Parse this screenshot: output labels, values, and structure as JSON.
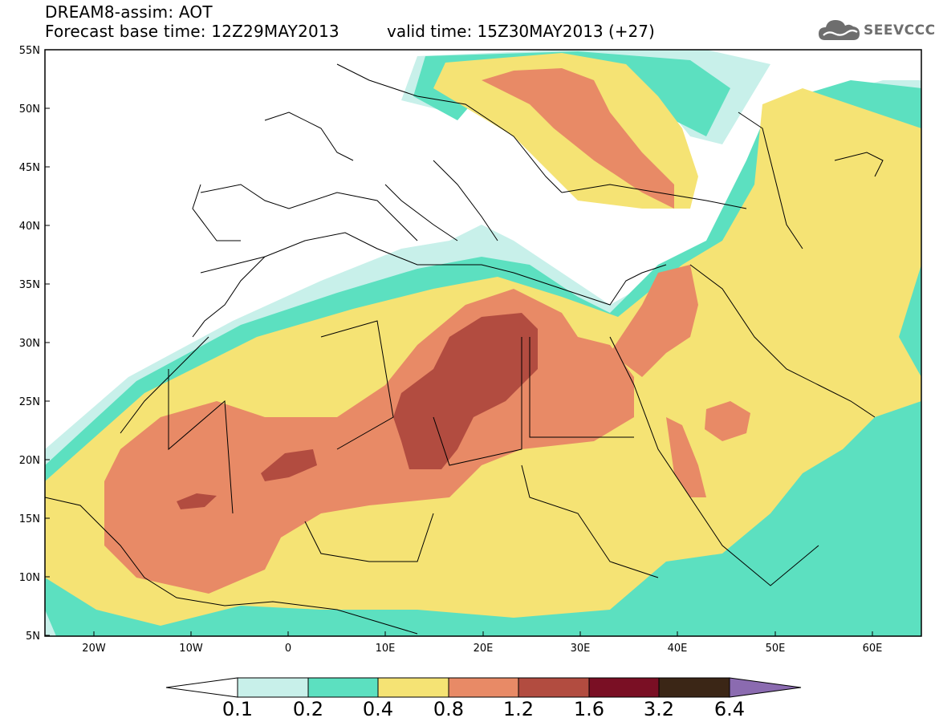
{
  "header": {
    "line1": "DREAM8-assim: AOT",
    "line2": "Forecast base time: 12Z29MAY2013",
    "valid": "valid time: 15Z30MAY2013 (+27)",
    "logo_text": "SEEVCCC"
  },
  "axes": {
    "lat_labels": [
      "55N",
      "50N",
      "45N",
      "40N",
      "35N",
      "30N",
      "25N",
      "20N",
      "15N",
      "10N",
      "5N"
    ],
    "lon_labels": [
      "20W",
      "10W",
      "0",
      "10E",
      "20E",
      "30E",
      "40E",
      "50E",
      "60E"
    ]
  },
  "legend": {
    "levels": [
      "0.1",
      "0.2",
      "0.4",
      "0.8",
      "1.2",
      "1.6",
      "3.2",
      "6.4"
    ],
    "colors": [
      "#ffffff",
      "#c8f0ea",
      "#5ce0c0",
      "#f5e374",
      "#e88a66",
      "#b24c40",
      "#7a0f24",
      "#3b2616",
      "#8b6bb0"
    ]
  },
  "map": {
    "field": "AOT",
    "fill_colors": {
      "very_low": "#c8f0ea",
      "low": "#5ce0c0",
      "mid": "#f5e374",
      "high": "#e88a66",
      "very_high": "#b24c40"
    }
  }
}
